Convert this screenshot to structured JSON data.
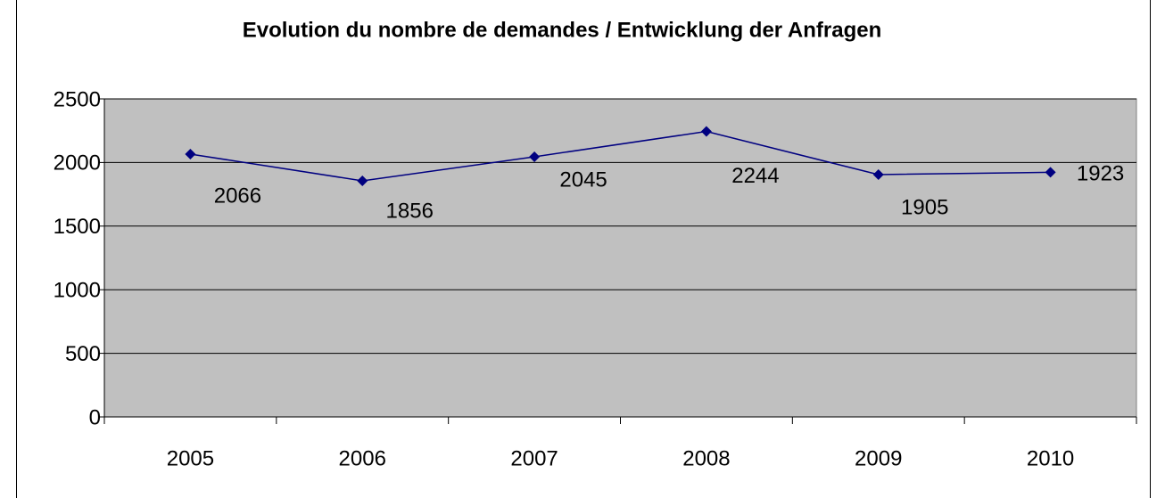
{
  "chart_data": {
    "type": "line",
    "title": "Evolution du nombre de demandes / Entwicklung der Anfragen",
    "categories": [
      "2005",
      "2006",
      "2007",
      "2008",
      "2009",
      "2010"
    ],
    "series": [
      {
        "name": null,
        "color": "#000080",
        "values": [
          2066,
          1856,
          2045,
          2244,
          1905,
          1923
        ]
      }
    ],
    "ylim": [
      0,
      2500
    ],
    "yticks": [
      0,
      500,
      1000,
      1500,
      2000,
      2500
    ],
    "grid": true,
    "plot_background": "#c0c0c0"
  }
}
